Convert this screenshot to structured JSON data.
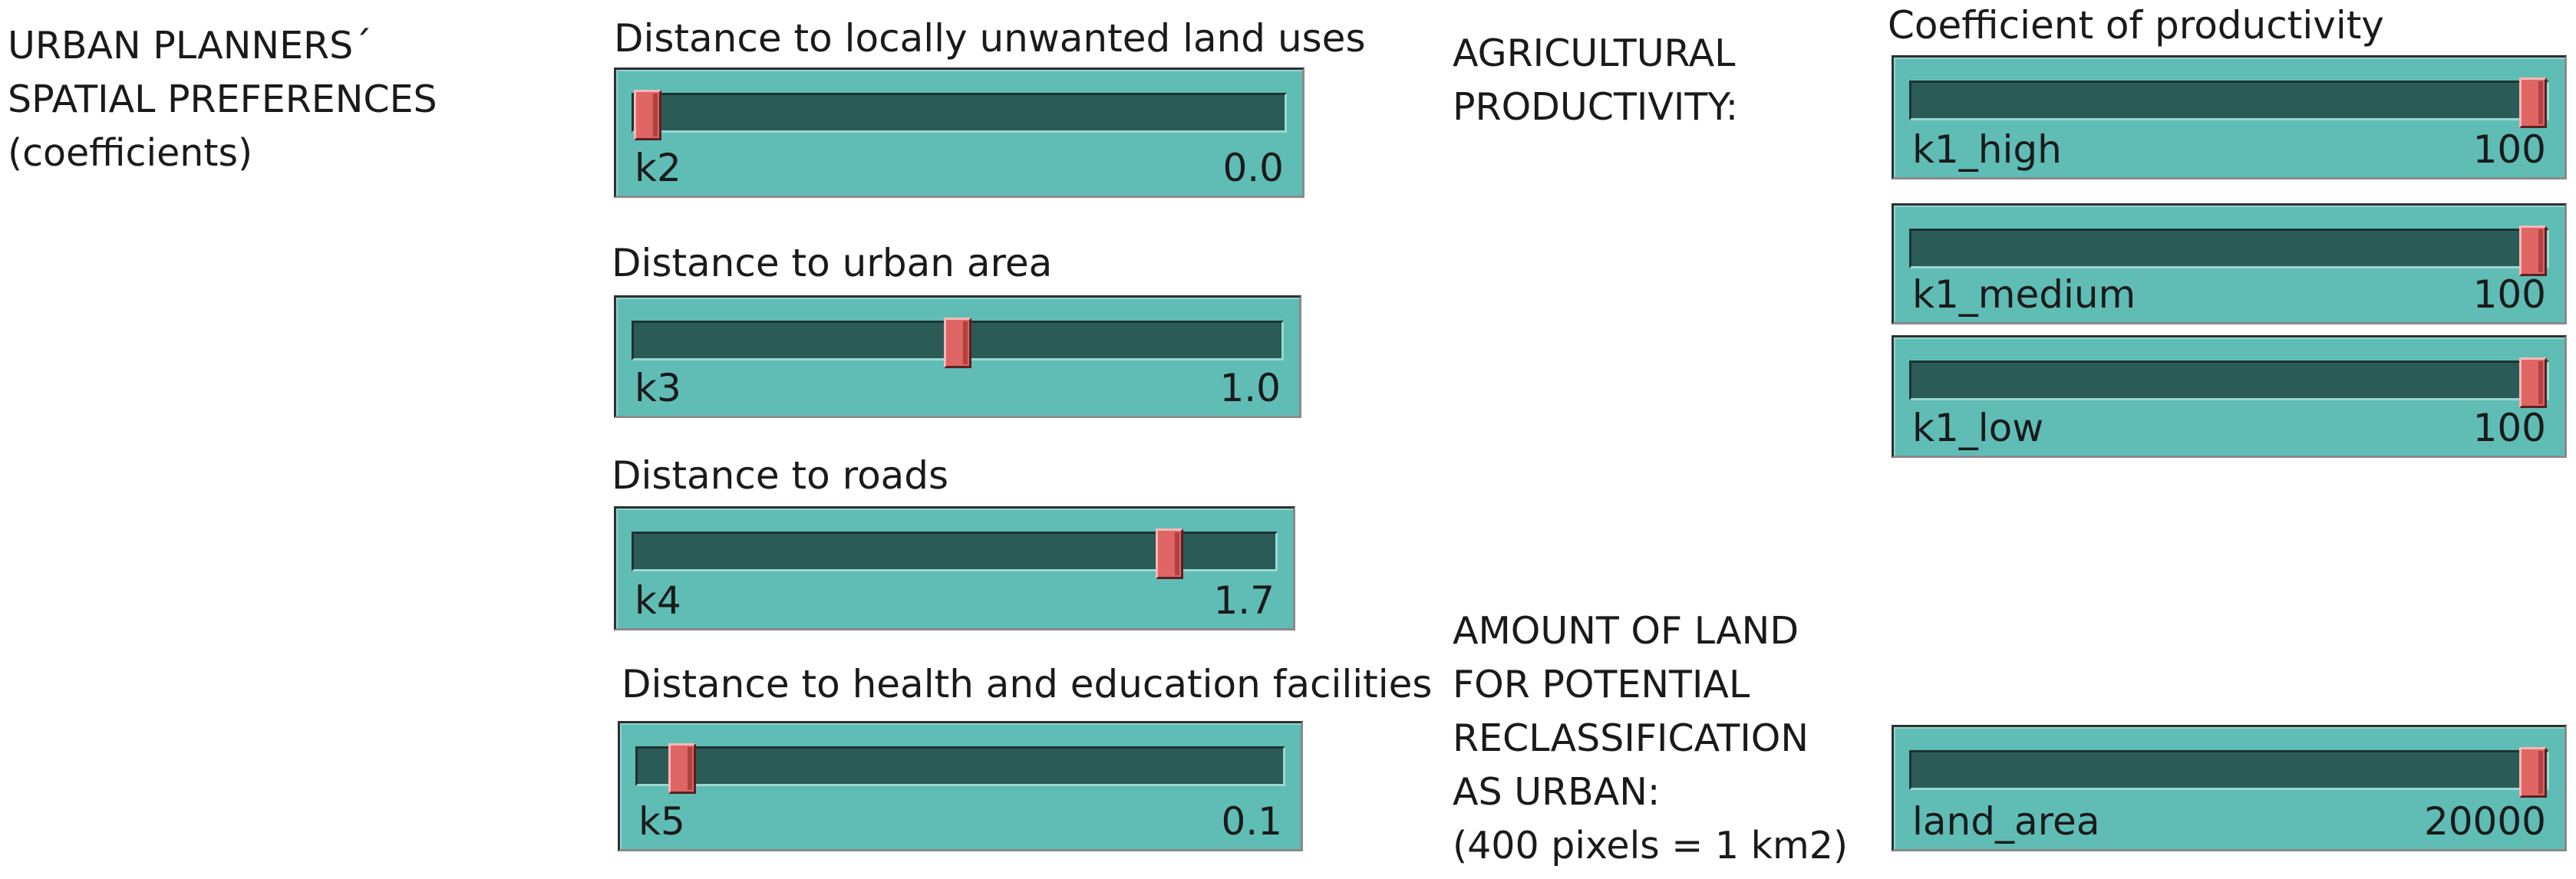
{
  "notes": {
    "urban_planners": "URBAN PLANNERS´\nSPATIAL PREFERENCES\n(coefficients)",
    "agricultural": "AGRICULTURAL\nPRODUCTIVITY:",
    "amount_of_land": "AMOUNT OF LAND\nFOR POTENTIAL\nRECLASSIFICATION\nAS URBAN:\n(400 pixels = 1 km2)"
  },
  "labels": {
    "k2": "Distance to locally unwanted land uses",
    "k3": "Distance to urban area",
    "k4": "Distance to roads",
    "k5": "Distance to health and education facilities",
    "k1": "Coefficient of productivity"
  },
  "sliders": {
    "k2": {
      "name": "k2",
      "value": "0.0",
      "level": 0.0
    },
    "k3": {
      "name": "k3",
      "value": "1.0",
      "level": 0.5
    },
    "k4": {
      "name": "k4",
      "value": "1.7",
      "level": 0.85
    },
    "k5": {
      "name": "k5",
      "value": "0.1",
      "level": 0.05
    },
    "k1_high": {
      "name": "k1_high",
      "value": "100",
      "level": 1.0
    },
    "k1_medium": {
      "name": "k1_medium",
      "value": "100",
      "level": 1.0
    },
    "k1_low": {
      "name": "k1_low",
      "value": "100",
      "level": 1.0
    },
    "land_area": {
      "name": "land_area",
      "value": "20000",
      "level": 1.0
    }
  },
  "colors": {
    "slider_body": "#5fbdb6",
    "slider_track": "#2b5b57",
    "slider_knob": "#e06565"
  }
}
